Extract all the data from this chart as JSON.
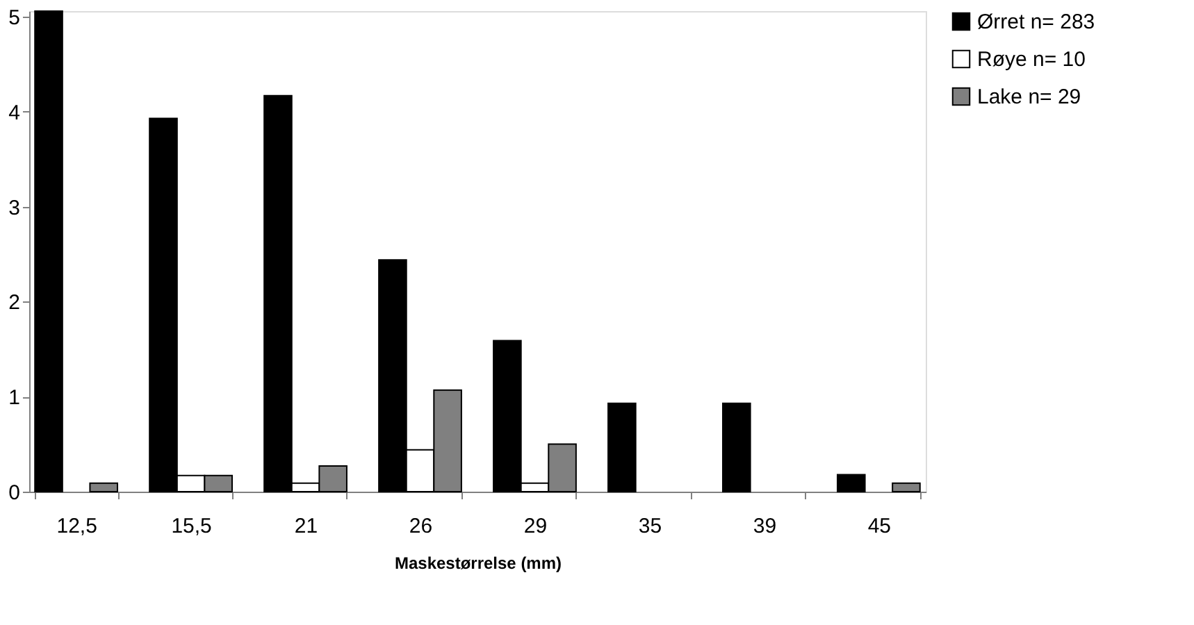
{
  "chart_data": {
    "type": "bar",
    "xlabel": "Maskestørrelse (mm)",
    "categories": [
      "12,5",
      "15,5",
      "21",
      "26",
      "29",
      "35",
      "39",
      "45"
    ],
    "series": [
      {
        "name": "Ørret n= 283",
        "color": "#000000",
        "values": [
          5.06,
          3.93,
          4.17,
          2.44,
          1.59,
          0.93,
          0.93,
          0.18
        ]
      },
      {
        "name": "Røye n= 10",
        "color": "#ffffff",
        "values": [
          null,
          0.17,
          0.09,
          0.44,
          0.09,
          null,
          null,
          null
        ]
      },
      {
        "name": "Lake n= 29",
        "color": "#808080",
        "values": [
          0.09,
          0.17,
          0.27,
          1.07,
          0.5,
          null,
          null,
          0.09
        ]
      }
    ],
    "ylim": [
      0,
      5.06
    ],
    "yticks": [
      0,
      1,
      2,
      3,
      4,
      5
    ],
    "grid": false,
    "legend": "right"
  }
}
